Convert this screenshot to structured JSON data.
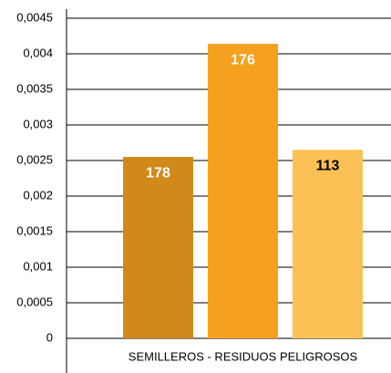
{
  "chart_data": {
    "type": "bar",
    "categories": [
      "SEMILLEROS - RESIDUOS PELIGROSOS"
    ],
    "series": [
      {
        "color": "#d08a1a",
        "values": [
          0.00255
        ],
        "annotation": "178",
        "annotation_color": "#ffffff"
      },
      {
        "color": "#f5a01f",
        "values": [
          0.00414
        ],
        "annotation": "176",
        "annotation_color": "#ffffff"
      },
      {
        "color": "#fbc154",
        "values": [
          0.00265
        ],
        "annotation": "113",
        "annotation_color": "#000000"
      }
    ],
    "ylim": [
      0,
      0.0045
    ],
    "yticks": [
      {
        "value": 0,
        "label": "0"
      },
      {
        "value": 0.0005,
        "label": "0,0005"
      },
      {
        "value": 0.001,
        "label": "0,001"
      },
      {
        "value": 0.0015,
        "label": "0,0015"
      },
      {
        "value": 0.002,
        "label": "0,002"
      },
      {
        "value": 0.0025,
        "label": "0,0025"
      },
      {
        "value": 0.003,
        "label": "0,003"
      },
      {
        "value": 0.0035,
        "label": "0,0035"
      },
      {
        "value": 0.004,
        "label": "0,004"
      },
      {
        "value": 0.0045,
        "label": "0,0045"
      }
    ],
    "grid": true
  }
}
